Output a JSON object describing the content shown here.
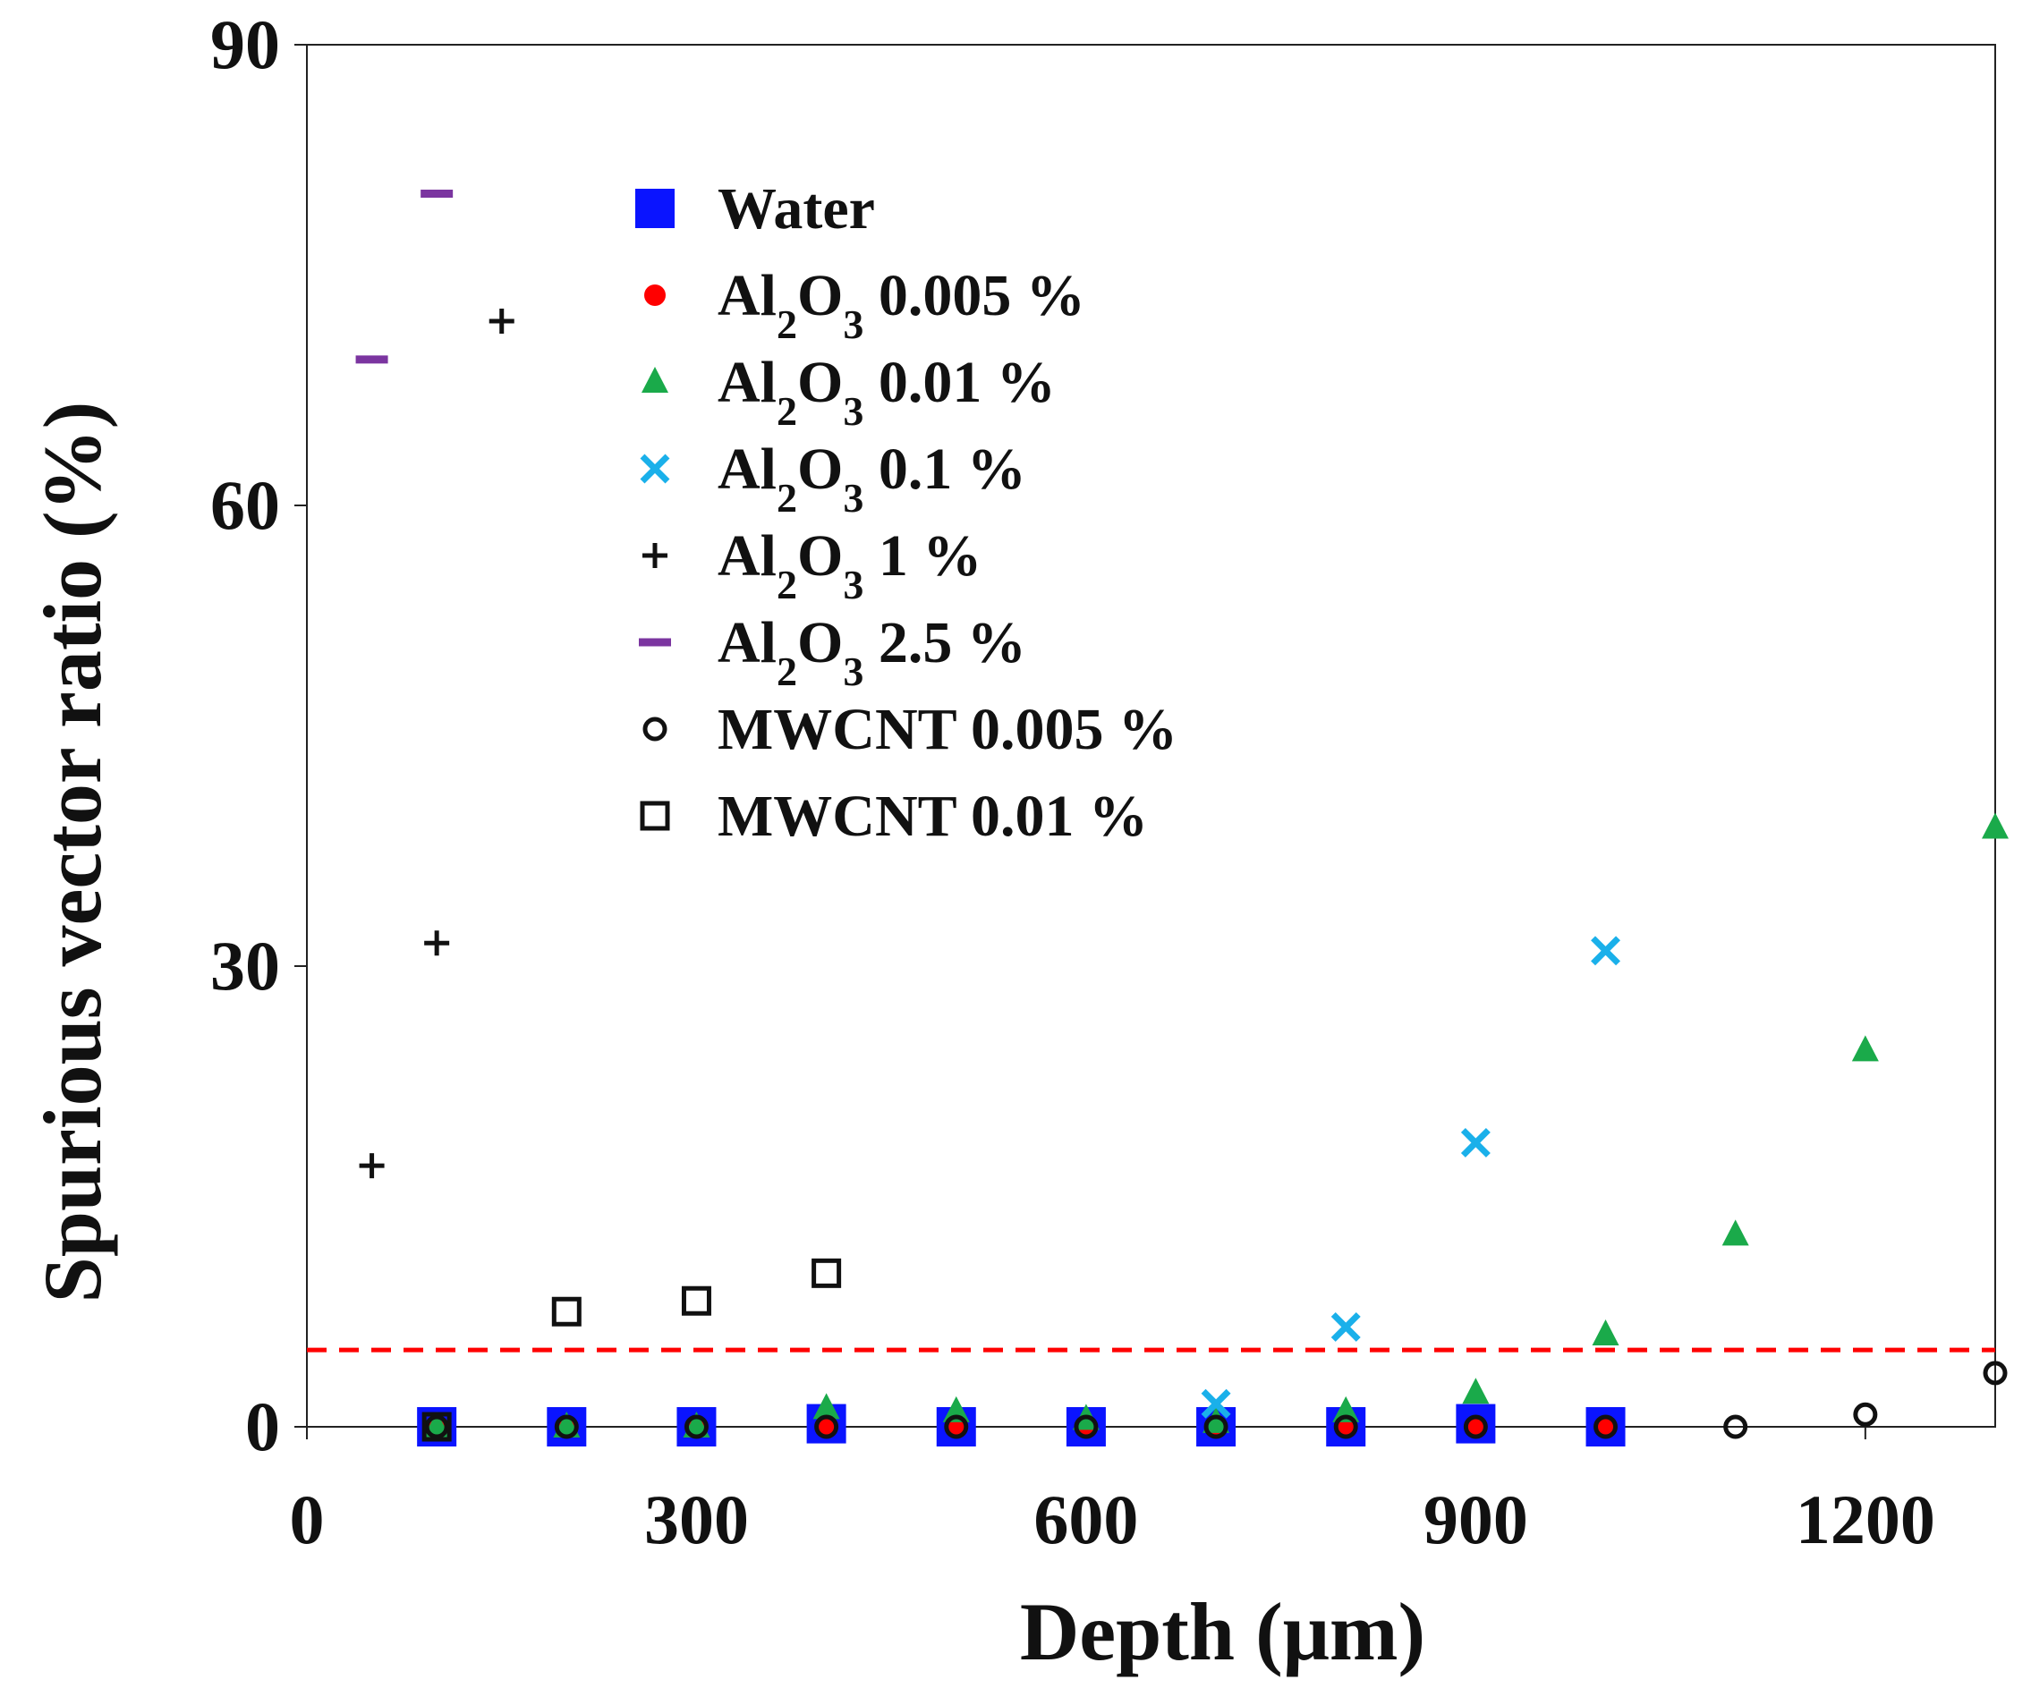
{
  "chart_data": {
    "type": "scatter",
    "xlabel": "Depth (μm)",
    "ylabel": "Spurious vector ratio (%)",
    "xlim": [
      0,
      1300
    ],
    "ylim": [
      0,
      90
    ],
    "xticks": [
      "0",
      "300",
      "600",
      "900",
      "1200"
    ],
    "xtick_values": [
      0,
      300,
      600,
      900,
      1200
    ],
    "yticks": [
      "0",
      "30",
      "60",
      "90"
    ],
    "ytick_values": [
      0,
      30,
      60,
      90
    ],
    "threshold": {
      "value": 5,
      "color": "#ff0000",
      "style": "dashed"
    },
    "series": [
      {
        "name": "Water",
        "label_parts": [
          {
            "t": "Water"
          }
        ],
        "marker": "square",
        "color": "#0a14ff",
        "x": [
          100,
          200,
          300,
          400,
          500,
          600,
          700,
          800,
          900,
          1000
        ],
        "y": [
          0,
          0,
          0,
          0.2,
          0,
          0,
          0,
          0,
          0.2,
          0
        ]
      },
      {
        "name": "Al2O3 0.005 %",
        "label_parts": [
          {
            "t": "Al"
          },
          {
            "t": "2",
            "sub": true
          },
          {
            "t": "O"
          },
          {
            "t": "3",
            "sub": true
          },
          {
            "t": "  0.005 %"
          }
        ],
        "marker": "circle",
        "color": "#ff0000",
        "x": [
          100,
          200,
          300,
          400,
          500,
          600,
          700,
          800,
          900,
          1000
        ],
        "y": [
          0,
          0,
          0,
          0,
          0,
          0,
          0,
          0,
          0,
          0
        ]
      },
      {
        "name": "Al2O3 0.01 %",
        "label_parts": [
          {
            "t": "Al"
          },
          {
            "t": "2",
            "sub": true
          },
          {
            "t": "O"
          },
          {
            "t": "3",
            "sub": true
          },
          {
            "t": "  0.01 %"
          }
        ],
        "marker": "triangle",
        "color": "#1aaa4a",
        "x": [
          100,
          200,
          300,
          400,
          500,
          600,
          700,
          800,
          900,
          1000,
          1100,
          1200,
          1300
        ],
        "y": [
          0,
          0,
          0,
          1.2,
          1,
          0.5,
          0.3,
          1,
          2.2,
          6,
          12.5,
          24.5,
          39
        ]
      },
      {
        "name": "Al2O3 0.1 %",
        "label_parts": [
          {
            "t": "Al"
          },
          {
            "t": "2",
            "sub": true
          },
          {
            "t": "O"
          },
          {
            "t": "3",
            "sub": true
          },
          {
            "t": "  0.1 %"
          }
        ],
        "marker": "x",
        "color": "#1ab0ea",
        "x": [
          700,
          800,
          900,
          1000
        ],
        "y": [
          1.5,
          6.5,
          18.5,
          31
        ]
      },
      {
        "name": "Al2O3 1 %",
        "label_parts": [
          {
            "t": "Al"
          },
          {
            "t": "2",
            "sub": true
          },
          {
            "t": "O"
          },
          {
            "t": "3",
            "sub": true
          },
          {
            "t": "  1 %"
          }
        ],
        "marker": "plus",
        "color": "#111111",
        "x": [
          50,
          100,
          150
        ],
        "y": [
          17,
          31.5,
          72
        ]
      },
      {
        "name": "Al2O3 2.5 %",
        "label_parts": [
          {
            "t": "Al"
          },
          {
            "t": "2",
            "sub": true
          },
          {
            "t": "O"
          },
          {
            "t": "3",
            "sub": true
          },
          {
            "t": "  2.5 %"
          }
        ],
        "marker": "dash",
        "color": "#7b35a0",
        "x": [
          50,
          100
        ],
        "y": [
          69.5,
          80.3
        ]
      },
      {
        "name": "MWCNT 0.005 %",
        "label_parts": [
          {
            "t": "MWCNT  0.005 %"
          }
        ],
        "marker": "open-circle",
        "color": "#111111",
        "x": [
          100,
          200,
          300,
          400,
          500,
          600,
          700,
          800,
          900,
          1000,
          1100,
          1200,
          1300
        ],
        "y": [
          0,
          0,
          0,
          0,
          0,
          0,
          0,
          0,
          0,
          0,
          0,
          0.8,
          3.5
        ]
      },
      {
        "name": "MWCNT 0.01 %",
        "label_parts": [
          {
            "t": "MWCNT  0.01 %"
          }
        ],
        "marker": "open-square",
        "color": "#111111",
        "x": [
          100,
          200,
          300,
          400
        ],
        "y": [
          0,
          7.5,
          8.2,
          10
        ]
      }
    ],
    "legend": {
      "position": "upper-center"
    }
  }
}
